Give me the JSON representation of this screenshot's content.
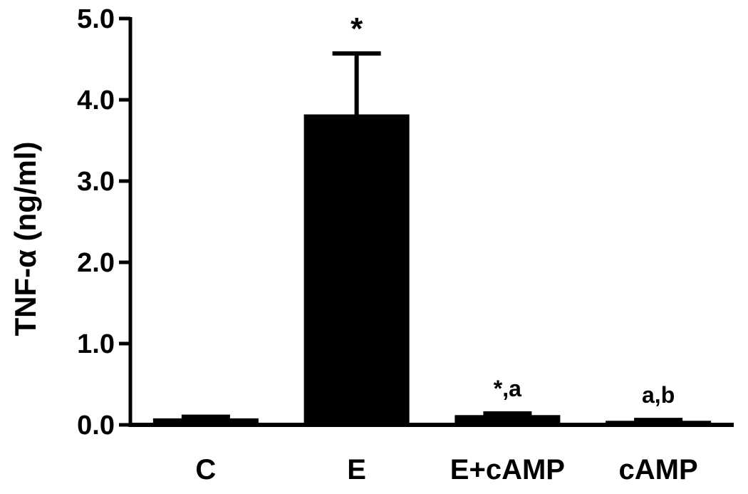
{
  "chart_data": {
    "type": "bar",
    "categories": [
      "C",
      "E",
      "E+cAMP",
      "cAMP"
    ],
    "values": [
      0.08,
      3.82,
      0.12,
      0.05
    ],
    "errors": [
      0.02,
      0.75,
      0.02,
      0.01
    ],
    "annotations": [
      "",
      "*",
      "*,a",
      "a,b"
    ],
    "ylabel": "TNF-α (ng/ml)",
    "xlabel": "",
    "ylim": [
      0,
      5.0
    ],
    "yticks": [
      "0.0",
      "1.0",
      "2.0",
      "3.0",
      "4.0",
      "5.0"
    ],
    "ytick_values": [
      0,
      1,
      2,
      3,
      4,
      5
    ],
    "bar_color": "#000000",
    "grid": false,
    "legend": "none"
  }
}
